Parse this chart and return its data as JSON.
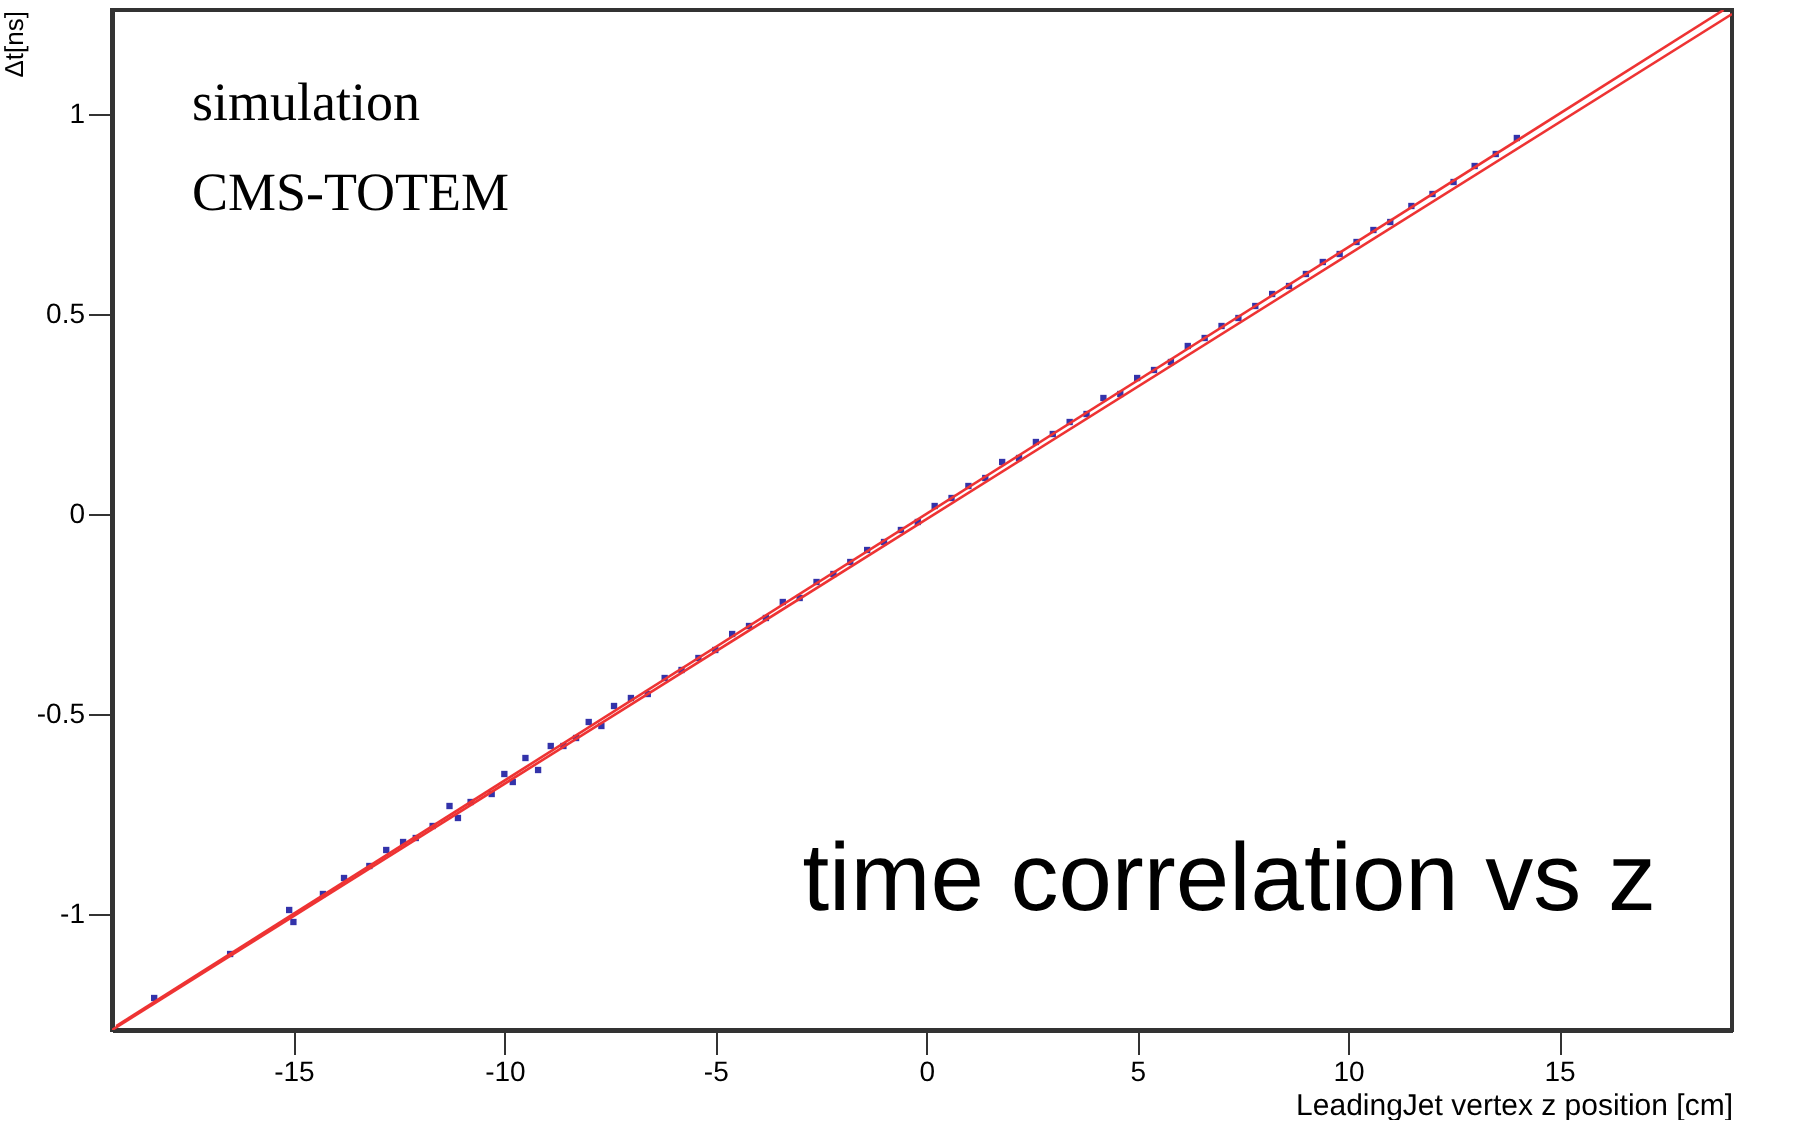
{
  "chart_data": {
    "type": "scatter",
    "xlabel": "LeadingJet vertex z position [cm]",
    "ylabel": "Δt[ns]",
    "annotations": [
      "simulation",
      "CMS-TOTEM",
      "time correlation vs z"
    ],
    "xlim": [
      -19.3,
      19.1
    ],
    "ylim": [
      -1.29,
      1.26
    ],
    "xticks": [
      -15,
      -10,
      -5,
      0,
      5,
      10,
      15
    ],
    "yticks": [
      -1,
      -0.5,
      0,
      0.5,
      1
    ],
    "grid": false,
    "series": [
      {
        "marker": "square",
        "color": "#3333aa",
        "x": [
          -18.3,
          -16.5,
          -15.1,
          -15.0,
          -14.3,
          -13.8,
          -13.2,
          -12.8,
          -12.4,
          -12.1,
          -11.7,
          -11.3,
          -11.1,
          -10.8,
          -10.3,
          -10.0,
          -9.8,
          -9.5,
          -9.2,
          -8.9,
          -8.6,
          -8.3,
          -8.0,
          -7.7,
          -7.4,
          -7.0,
          -6.6,
          -6.2,
          -5.8,
          -5.4,
          -5.0,
          -4.6,
          -4.2,
          -3.8,
          -3.4,
          -3.0,
          -2.6,
          -2.2,
          -1.8,
          -1.4,
          -1.0,
          -0.6,
          -0.2,
          0.2,
          0.6,
          1.0,
          1.4,
          1.8,
          2.2,
          2.6,
          3.0,
          3.4,
          3.8,
          4.2,
          4.6,
          5.0,
          5.4,
          5.8,
          6.2,
          6.6,
          7.0,
          7.4,
          7.8,
          8.2,
          8.6,
          9.0,
          9.4,
          9.8,
          10.2,
          10.6,
          11.0,
          11.5,
          12.0,
          12.5,
          13.0,
          13.5,
          14.0
        ],
        "values": [
          -1.21,
          -1.1,
          -0.99,
          -1.02,
          -0.95,
          -0.91,
          -0.88,
          -0.84,
          -0.82,
          -0.81,
          -0.78,
          -0.73,
          -0.76,
          -0.72,
          -0.7,
          -0.65,
          -0.67,
          -0.61,
          -0.64,
          -0.58,
          -0.58,
          -0.56,
          -0.52,
          -0.53,
          -0.48,
          -0.46,
          -0.45,
          -0.41,
          -0.39,
          -0.36,
          -0.34,
          -0.3,
          -0.28,
          -0.26,
          -0.22,
          -0.21,
          -0.17,
          -0.15,
          -0.12,
          -0.09,
          -0.07,
          -0.04,
          -0.02,
          0.02,
          0.04,
          0.07,
          0.09,
          0.13,
          0.14,
          0.18,
          0.2,
          0.23,
          0.25,
          0.29,
          0.3,
          0.34,
          0.36,
          0.38,
          0.42,
          0.44,
          0.47,
          0.49,
          0.52,
          0.55,
          0.57,
          0.6,
          0.63,
          0.65,
          0.68,
          0.71,
          0.73,
          0.77,
          0.8,
          0.83,
          0.87,
          0.9,
          0.94
        ]
      },
      {
        "type": "line",
        "color": "#ee3333",
        "x": [
          -19.2,
          18.9
        ],
        "values": [
          -1.28,
          1.26
        ]
      },
      {
        "type": "line",
        "color": "#ee3333",
        "x": [
          -19.3,
          19.1
        ],
        "values": [
          -1.29,
          1.25
        ]
      }
    ]
  }
}
